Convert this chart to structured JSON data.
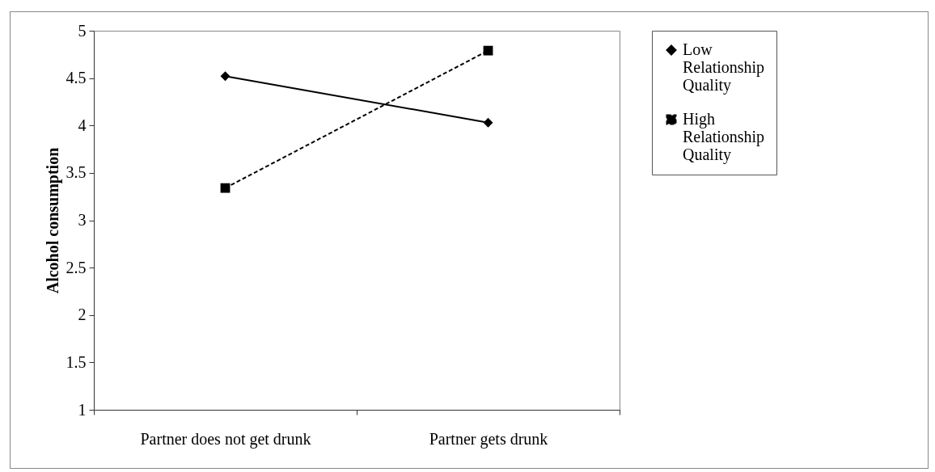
{
  "chart_data": {
    "type": "line",
    "categories": [
      "Partner does not get drunk",
      "Partner gets drunk"
    ],
    "ylabel": "Alcohol consumption",
    "ylim": [
      1,
      5
    ],
    "yticks": [
      1,
      1.5,
      2,
      2.5,
      3,
      3.5,
      4,
      4.5,
      5
    ],
    "grid": false,
    "legend": "right",
    "series": [
      {
        "name": "Low Relationship Quality",
        "color": "#000000",
        "marker": "diamond",
        "line_style": "solid",
        "values": [
          4.52,
          4.03
        ]
      },
      {
        "name": "High Relationship Quality",
        "color": "#000000",
        "marker": "square",
        "line_style": "dashed",
        "values": [
          3.34,
          4.79
        ]
      }
    ]
  }
}
